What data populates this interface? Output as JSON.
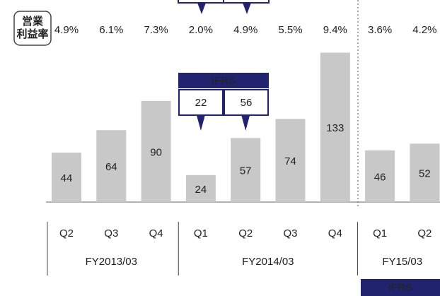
{
  "chart_data": {
    "type": "bar",
    "categories": [
      "Q2",
      "Q3",
      "Q4",
      "Q1",
      "Q2",
      "Q3",
      "Q4",
      "Q1",
      "Q2"
    ],
    "values": [
      44,
      64,
      90,
      24,
      57,
      74,
      133,
      46,
      52
    ],
    "color": "#c8c8c8",
    "groups": [
      {
        "label": "FY2013/03",
        "count": 3
      },
      {
        "label": "FY2014/03",
        "count": 4
      },
      {
        "label": "FY15/03",
        "count": 2
      }
    ],
    "margin": {
      "label": [
        "営業",
        "利益率"
      ],
      "values": [
        4.9,
        6.1,
        7.3,
        2.0,
        4.9,
        5.5,
        9.4,
        3.6,
        4.2
      ],
      "value_labels": [
        "4.9%",
        "6.1%",
        "7.3%",
        "2.0%",
        "4.9%",
        "5.5%",
        "9.4%",
        "3.6%",
        "4.2%"
      ]
    },
    "ifrs_callout": {
      "label": "IFRS",
      "values": [
        22,
        56
      ]
    },
    "ifrs_banner": "IFRS"
  }
}
